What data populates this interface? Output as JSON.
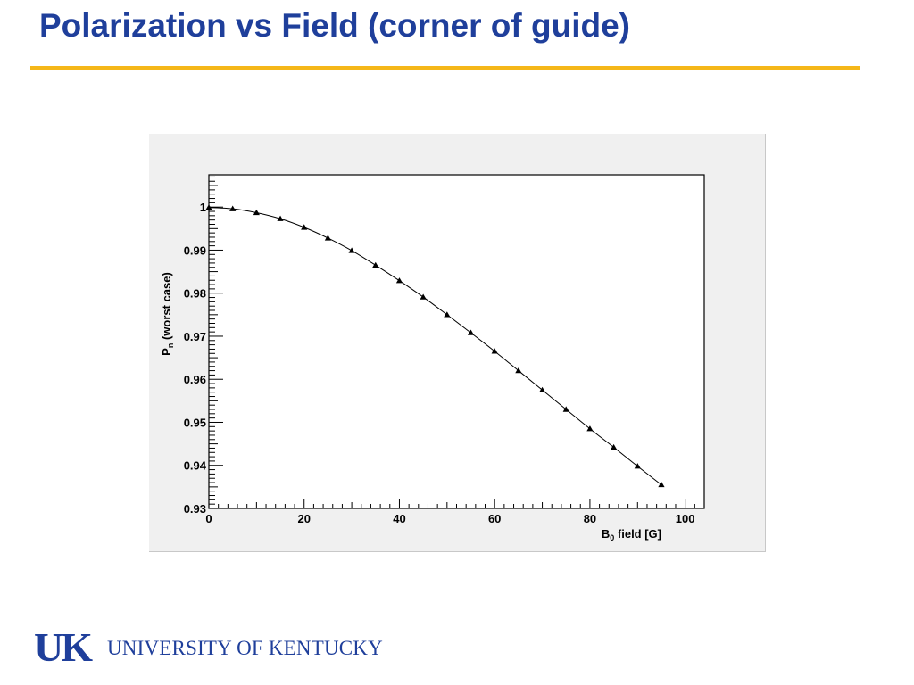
{
  "slide": {
    "title": "Polarization vs Field (corner of guide)"
  },
  "footer": {
    "logo_mark": "UK",
    "logo_text": "UNIVERSITY OF KENTUCKY"
  },
  "colors": {
    "title": "#1f3f9b",
    "rule": "#f5b719",
    "panel": "#f0f0f0"
  },
  "chart_data": {
    "type": "scatter",
    "xlabel_main": "B",
    "xlabel_sub": "0",
    "xlabel_rest": " field  [G]",
    "ylabel_main": "P",
    "ylabel_sub": "n",
    "ylabel_rest": " (worst case)",
    "xlim": [
      0,
      104
    ],
    "ylim": [
      0.93,
      1.0075
    ],
    "x_ticks": [
      0,
      20,
      40,
      60,
      80,
      100
    ],
    "y_ticks": [
      0.93,
      0.94,
      0.95,
      0.96,
      0.97,
      0.98,
      0.99,
      1.0
    ],
    "x_tick_labels": [
      "0",
      "20",
      "40",
      "60",
      "80",
      "100"
    ],
    "y_tick_labels": [
      "0.93",
      "0.94",
      "0.95",
      "0.96",
      "0.97",
      "0.98",
      "0.99",
      "1"
    ],
    "series": [
      {
        "marker": "triangle",
        "x": [
          0,
          5,
          10,
          15,
          20,
          25,
          30,
          35,
          40,
          45,
          50,
          55,
          60,
          65,
          70,
          75,
          80,
          85,
          90,
          95
        ],
        "y": [
          0.9999,
          0.9996,
          0.9987,
          0.9973,
          0.9953,
          0.9928,
          0.9899,
          0.9865,
          0.9829,
          0.9791,
          0.975,
          0.9708,
          0.9665,
          0.962,
          0.9575,
          0.953,
          0.9485,
          0.9442,
          0.9398,
          0.9355
        ]
      }
    ],
    "curve": true,
    "grid": false,
    "legend": "none"
  }
}
